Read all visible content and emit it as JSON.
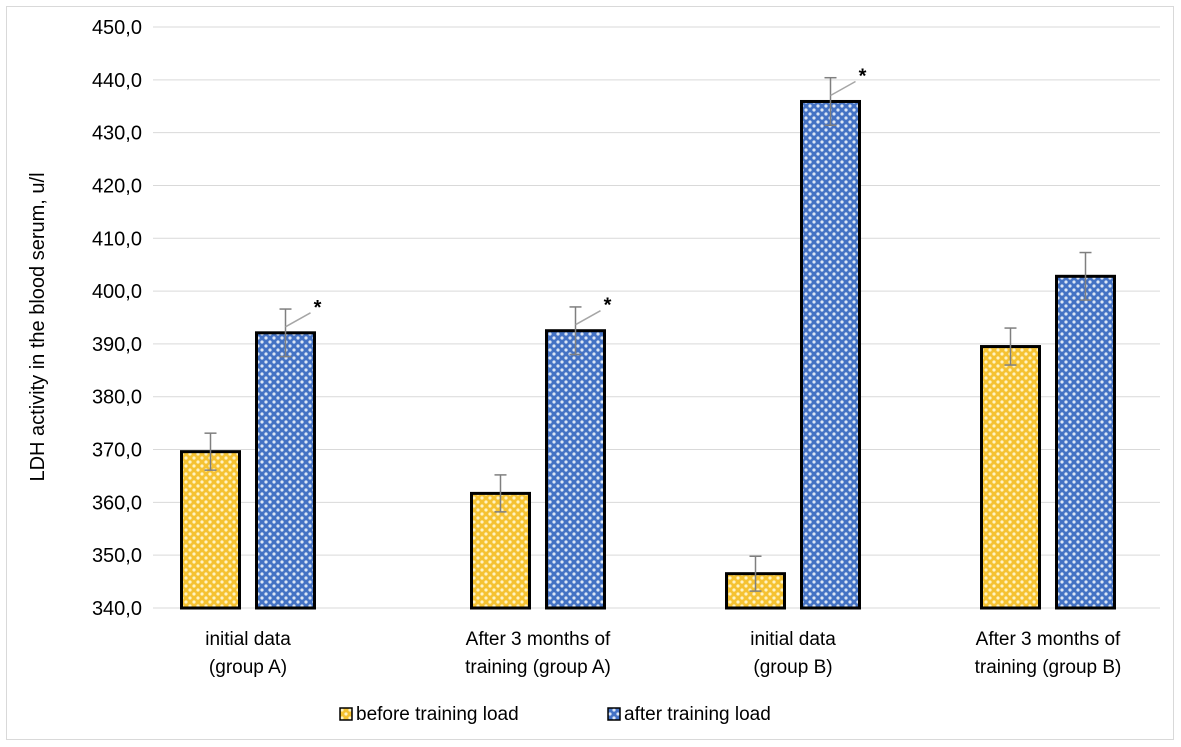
{
  "chart_data": {
    "type": "bar",
    "title": "",
    "xlabel": "",
    "ylabel": "LDH activity in the blood serum, u/l",
    "ylim": [
      340,
      450
    ],
    "ytick_step": 10,
    "ytick_labels": [
      "340,0",
      "350,0",
      "360,0",
      "370,0",
      "380,0",
      "390,0",
      "400,0",
      "410,0",
      "420,0",
      "430,0",
      "440,0",
      "450,0"
    ],
    "grid": true,
    "legend_position": "bottom",
    "categories": [
      [
        "initial data",
        "(group A)"
      ],
      [
        "After 3 months of",
        "training (group A)"
      ],
      [
        "initial data",
        "(group B)"
      ],
      [
        "After 3 months of",
        "training (group B)"
      ]
    ],
    "series": [
      {
        "name": "before training load",
        "values": [
          369.6,
          361.7,
          346.5,
          389.5
        ],
        "errors": [
          3.5,
          3.5,
          3.3,
          3.5
        ],
        "significant": [
          false,
          false,
          false,
          false
        ],
        "fill": "#f5c232",
        "dot": "#fff3c4"
      },
      {
        "name": "after training load",
        "values": [
          392.1,
          392.5,
          435.9,
          402.8
        ],
        "errors": [
          4.5,
          4.5,
          4.5,
          4.5
        ],
        "significant": [
          true,
          true,
          true,
          false
        ],
        "fill": "#4472c4",
        "dot": "#dce6f5"
      }
    ],
    "significance_marker": "*"
  }
}
